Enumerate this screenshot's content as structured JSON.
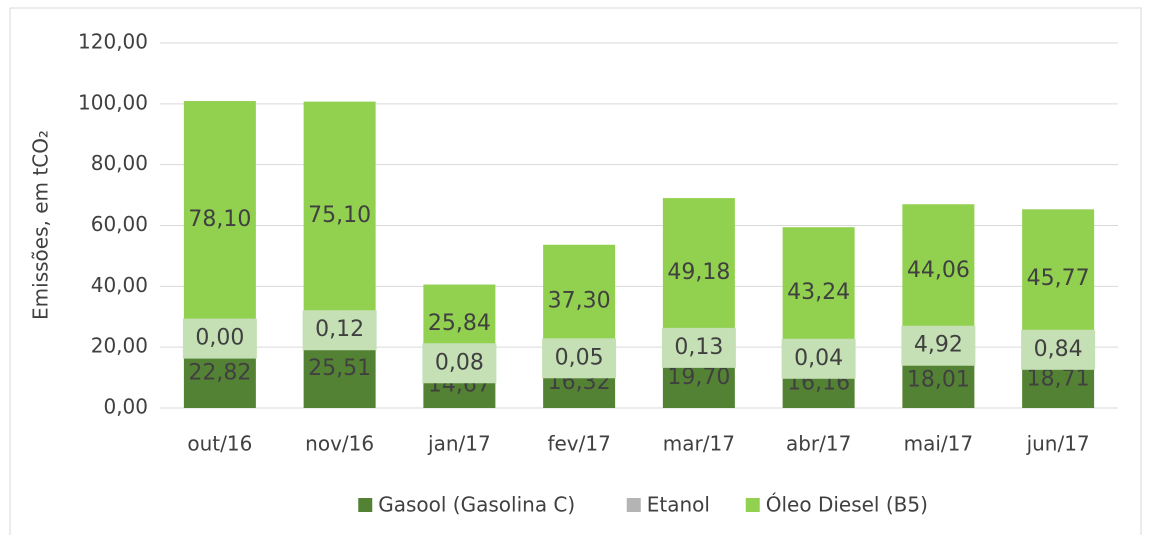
{
  "chart_data": {
    "type": "stacked_bar",
    "y_label": "Emissões, em tCO₂",
    "categories": [
      "out/16",
      "nov/16",
      "jan/17",
      "fev/17",
      "mar/17",
      "abr/17",
      "mai/17",
      "jun/17"
    ],
    "series": [
      {
        "name": "Gasool (Gasolina C)",
        "color": "#548235",
        "values": [
          22.82,
          25.51,
          14.67,
          16.32,
          19.7,
          16.16,
          18.01,
          18.71
        ],
        "value_labels": [
          "22,82",
          "25,51",
          "14,67",
          "16,32",
          "19,70",
          "16,16",
          "18,01",
          "18,71"
        ]
      },
      {
        "name": "Etanol",
        "color": "#b4b4b4",
        "values": [
          0.0,
          0.12,
          0.08,
          0.05,
          0.13,
          0.04,
          4.92,
          0.84
        ],
        "value_labels": [
          "0,00",
          "0,12",
          "0,08",
          "0,05",
          "0,13",
          "0,04",
          "4,92",
          "0,84"
        ]
      },
      {
        "name": "Óleo Diesel (B5)",
        "color": "#92d050",
        "values": [
          78.1,
          75.1,
          25.84,
          37.3,
          49.18,
          43.24,
          44.06,
          45.77
        ],
        "value_labels": [
          "78,10",
          "75,10",
          "25,84",
          "37,30",
          "49,18",
          "43,24",
          "44,06",
          "45,77"
        ]
      }
    ],
    "ylim": [
      0,
      120
    ],
    "yticks": [
      {
        "value": 0,
        "label": "0,00"
      },
      {
        "value": 20,
        "label": "20,00"
      },
      {
        "value": 40,
        "label": "40,00"
      },
      {
        "value": 60,
        "label": "60,00"
      },
      {
        "value": 80,
        "label": "80,00"
      },
      {
        "value": 100,
        "label": "100,00"
      },
      {
        "value": 120,
        "label": "120,00"
      }
    ],
    "grid": true,
    "legend": "bottom"
  }
}
